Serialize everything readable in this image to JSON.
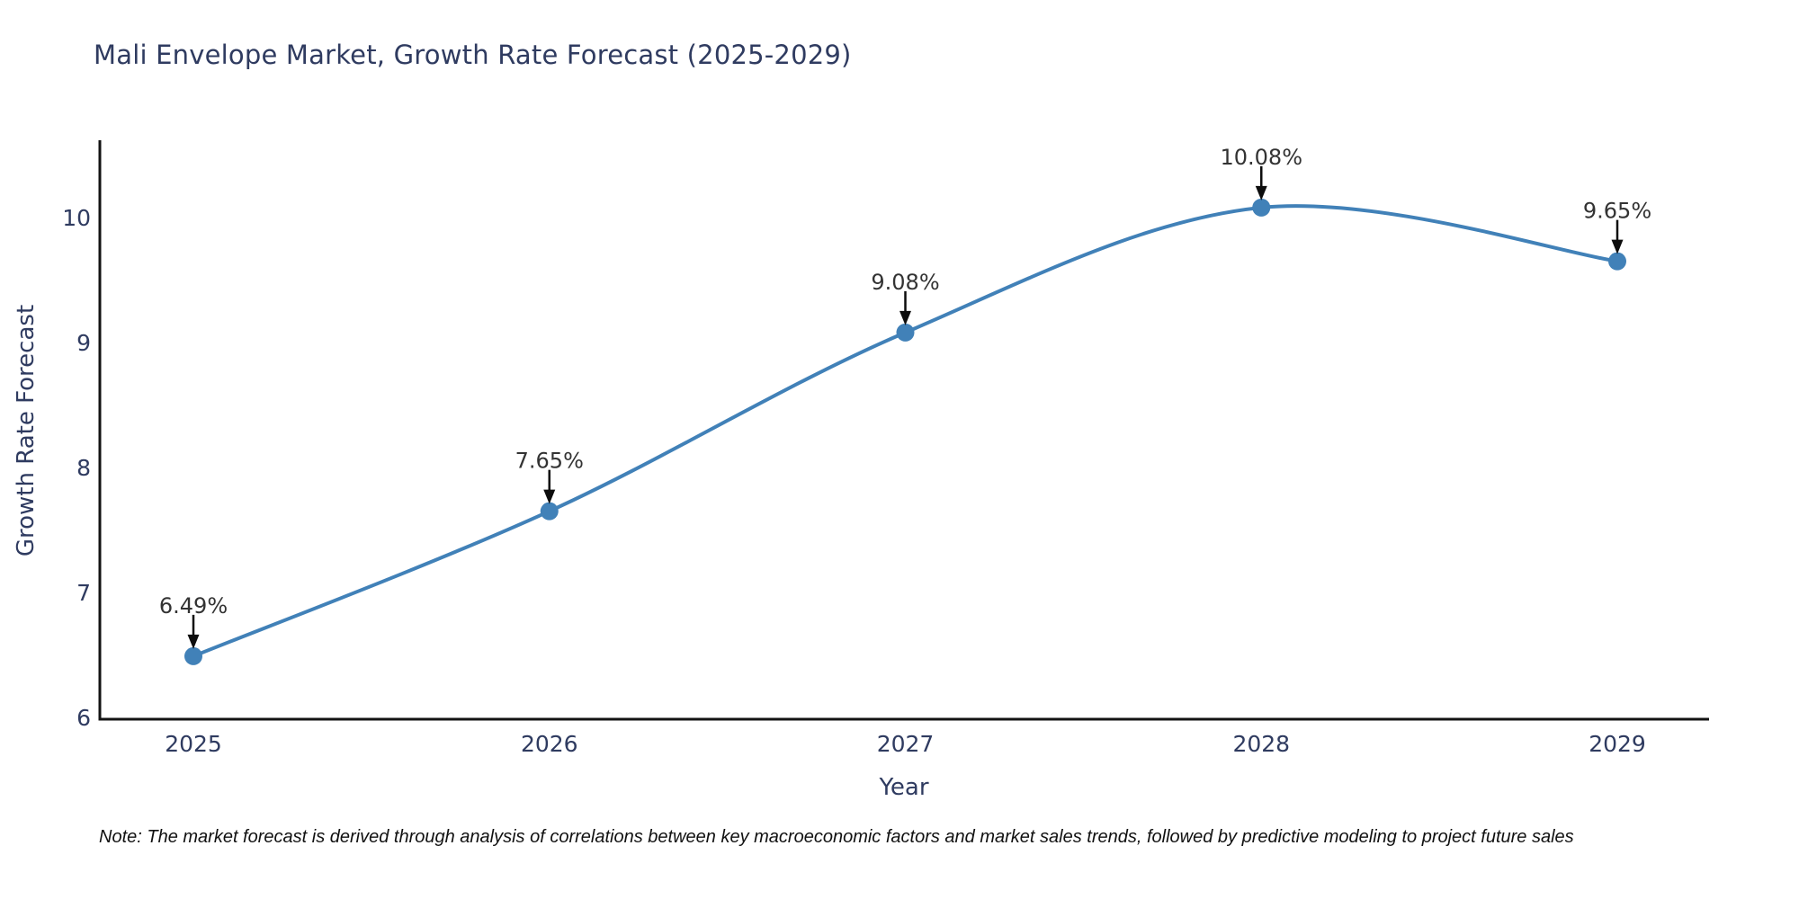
{
  "title": "Mali Envelope Market, Growth Rate Forecast (2025-2029)",
  "chart_data": {
    "type": "line",
    "x": [
      2025,
      2026,
      2027,
      2028,
      2029
    ],
    "values": [
      6.49,
      7.65,
      9.08,
      10.08,
      9.65
    ],
    "point_labels": [
      "6.49%",
      "7.65%",
      "9.08%",
      "10.08%",
      "9.65%"
    ],
    "title": "Mali Envelope Market, Growth Rate Forecast (2025-2029)",
    "xlabel": "Year",
    "ylabel": "Growth Rate Forecast",
    "yticks": [
      6,
      7,
      8,
      9,
      10
    ],
    "xticks": [
      2025,
      2026,
      2027,
      2028,
      2029
    ],
    "ylim": [
      6,
      10.6
    ],
    "xlim": [
      2025,
      2029
    ],
    "line_shape": "spline",
    "grid": false,
    "legend_position": "none",
    "line_color": "#4181b8",
    "marker_color": "#4181b8",
    "arrow_color": "#0d0d0d",
    "axis_color": "#131313"
  },
  "note": "Note: The market forecast is derived through analysis of correlations between key macroeconomic factors and market sales trends, followed by predictive modeling to project future sales",
  "colors": {
    "title_text": "#2f3b60",
    "tick_text": "#2f3b60",
    "point_label_text": "#333333",
    "note_text": "#111111",
    "background": "#ffffff"
  }
}
